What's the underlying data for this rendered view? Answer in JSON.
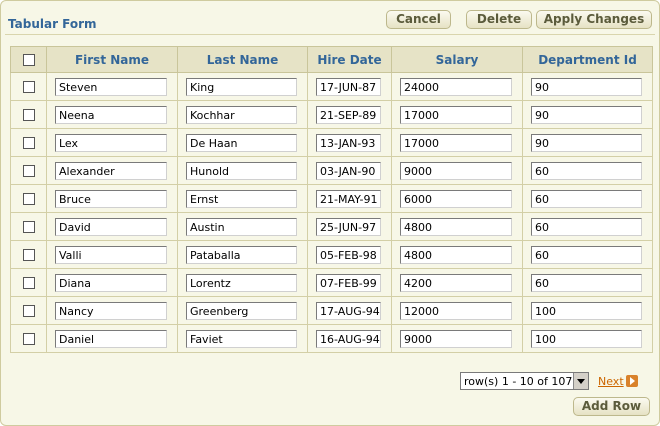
{
  "header": {
    "title": "Tabular Form",
    "buttons": [
      "Cancel",
      "Delete",
      "Apply Changes"
    ]
  },
  "table": {
    "columns": [
      "First Name",
      "Last Name",
      "Hire Date",
      "Salary",
      "Department Id"
    ],
    "rows": [
      [
        "Steven",
        "King",
        "17-JUN-87",
        "24000",
        "90"
      ],
      [
        "Neena",
        "Kochhar",
        "21-SEP-89",
        "17000",
        "90"
      ],
      [
        "Lex",
        "De Haan",
        "13-JAN-93",
        "17000",
        "90"
      ],
      [
        "Alexander",
        "Hunold",
        "03-JAN-90",
        "9000",
        "60"
      ],
      [
        "Bruce",
        "Ernst",
        "21-MAY-91",
        "6000",
        "60"
      ],
      [
        "David",
        "Austin",
        "25-JUN-97",
        "4800",
        "60"
      ],
      [
        "Valli",
        "Pataballa",
        "05-FEB-98",
        "4800",
        "60"
      ],
      [
        "Diana",
        "Lorentz",
        "07-FEB-99",
        "4200",
        "60"
      ],
      [
        "Nancy",
        "Greenberg",
        "17-AUG-94",
        "12000",
        "100"
      ],
      [
        "Daniel",
        "Faviet",
        "16-AUG-94",
        "9000",
        "100"
      ]
    ]
  },
  "pagination": {
    "range": "row(s) 1 - 10 of 107",
    "next": "Next"
  },
  "footer": {
    "add_row": "Add Row"
  }
}
